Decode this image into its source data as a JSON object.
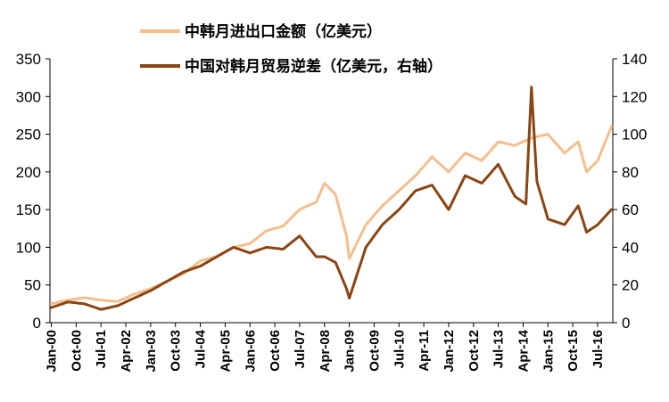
{
  "chart_data": {
    "type": "line",
    "title": "",
    "xlabel": "",
    "ylabel": "",
    "y_left": {
      "min": 0,
      "max": 350,
      "ticks": [
        0,
        50,
        100,
        150,
        200,
        250,
        300,
        350
      ]
    },
    "y_right": {
      "min": 0,
      "max": 140,
      "ticks": [
        0,
        20,
        40,
        60,
        80,
        100,
        120,
        140
      ]
    },
    "x_tick_labels": [
      "Jan-00",
      "Oct-00",
      "Jul-01",
      "Apr-02",
      "Jan-03",
      "Oct-03",
      "Jul-04",
      "Apr-05",
      "Jan-06",
      "Oct-06",
      "Jul-07",
      "Apr-08",
      "Jan-09",
      "Oct-09",
      "Jul-10",
      "Apr-11",
      "Jan-12",
      "Oct-12",
      "Jul-13",
      "Apr-14",
      "Jan-15",
      "Oct-15",
      "Jul-16"
    ],
    "legend_position": "top",
    "series": [
      {
        "name": "中韩月进出口金额（亿美元）",
        "axis": "left",
        "color": "#F5BE8C",
        "keypoints": [
          [
            "2000-01",
            25
          ],
          [
            "2000-07",
            30
          ],
          [
            "2001-01",
            33
          ],
          [
            "2001-07",
            30
          ],
          [
            "2002-01",
            28
          ],
          [
            "2002-07",
            38
          ],
          [
            "2003-01",
            45
          ],
          [
            "2003-07",
            55
          ],
          [
            "2004-01",
            65
          ],
          [
            "2004-07",
            82
          ],
          [
            "2005-01",
            88
          ],
          [
            "2005-07",
            100
          ],
          [
            "2006-01",
            105
          ],
          [
            "2006-07",
            122
          ],
          [
            "2007-01",
            128
          ],
          [
            "2007-07",
            150
          ],
          [
            "2008-01",
            160
          ],
          [
            "2008-04",
            185
          ],
          [
            "2008-08",
            170
          ],
          [
            "2008-12",
            115
          ],
          [
            "2009-01",
            85
          ],
          [
            "2009-07",
            130
          ],
          [
            "2010-01",
            155
          ],
          [
            "2010-07",
            175
          ],
          [
            "2011-01",
            195
          ],
          [
            "2011-07",
            220
          ],
          [
            "2012-01",
            200
          ],
          [
            "2012-07",
            225
          ],
          [
            "2013-01",
            215
          ],
          [
            "2013-07",
            240
          ],
          [
            "2014-01",
            235
          ],
          [
            "2014-07",
            245
          ],
          [
            "2015-01",
            250
          ],
          [
            "2015-07",
            225
          ],
          [
            "2015-12",
            240
          ],
          [
            "2016-03",
            200
          ],
          [
            "2016-07",
            215
          ],
          [
            "2016-12",
            260
          ]
        ]
      },
      {
        "name": "中国对韩月贸易逆差（亿美元，右轴）",
        "axis": "right",
        "color": "#8B4513",
        "keypoints": [
          [
            "2000-01",
            8
          ],
          [
            "2000-07",
            11
          ],
          [
            "2001-01",
            10
          ],
          [
            "2001-07",
            7
          ],
          [
            "2002-01",
            9
          ],
          [
            "2002-07",
            13
          ],
          [
            "2003-01",
            17
          ],
          [
            "2003-07",
            22
          ],
          [
            "2004-01",
            27
          ],
          [
            "2004-07",
            30
          ],
          [
            "2005-01",
            35
          ],
          [
            "2005-07",
            40
          ],
          [
            "2006-01",
            37
          ],
          [
            "2006-07",
            40
          ],
          [
            "2007-01",
            39
          ],
          [
            "2007-07",
            46
          ],
          [
            "2008-01",
            35
          ],
          [
            "2008-04",
            35
          ],
          [
            "2008-08",
            32
          ],
          [
            "2008-12",
            18
          ],
          [
            "2009-01",
            13
          ],
          [
            "2009-07",
            40
          ],
          [
            "2010-01",
            52
          ],
          [
            "2010-07",
            60
          ],
          [
            "2011-01",
            70
          ],
          [
            "2011-07",
            73
          ],
          [
            "2012-01",
            60
          ],
          [
            "2012-07",
            78
          ],
          [
            "2013-01",
            74
          ],
          [
            "2013-07",
            84
          ],
          [
            "2014-01",
            67
          ],
          [
            "2014-05",
            63
          ],
          [
            "2014-07",
            125
          ],
          [
            "2014-09",
            75
          ],
          [
            "2015-01",
            55
          ],
          [
            "2015-07",
            52
          ],
          [
            "2015-12",
            62
          ],
          [
            "2016-03",
            48
          ],
          [
            "2016-07",
            52
          ],
          [
            "2016-12",
            60
          ]
        ]
      }
    ]
  }
}
